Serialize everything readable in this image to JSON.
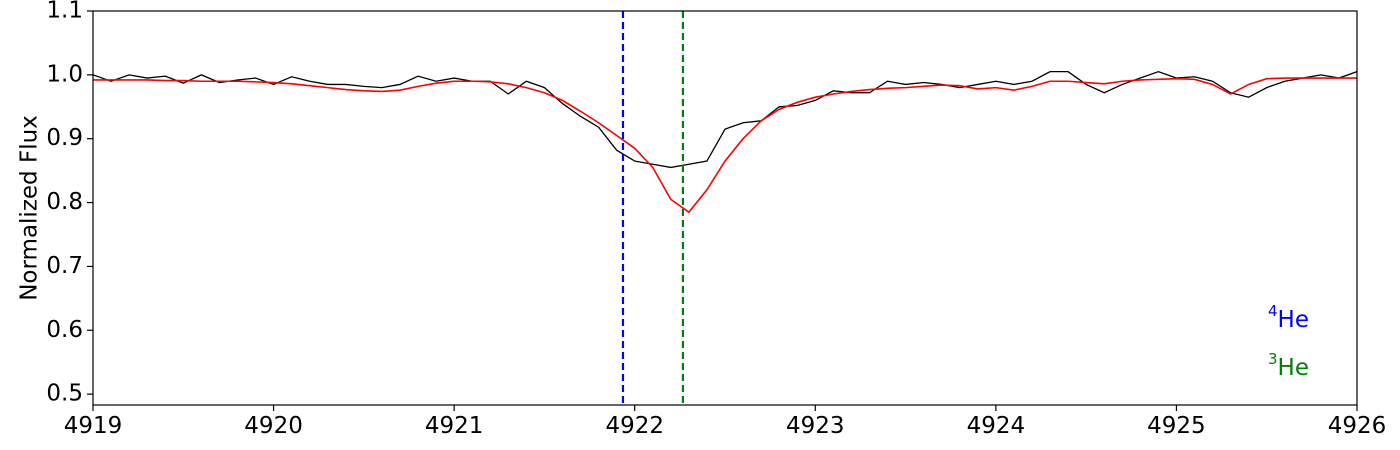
{
  "chart_data": {
    "type": "line",
    "ylabel": "Normalized Flux",
    "x": [
      4919.0,
      4919.1,
      4919.2,
      4919.3,
      4919.4,
      4919.5,
      4919.6,
      4919.7,
      4919.8,
      4919.9,
      4920.0,
      4920.1,
      4920.2,
      4920.3,
      4920.4,
      4920.5,
      4920.6,
      4920.7,
      4920.8,
      4920.9,
      4921.0,
      4921.1,
      4921.2,
      4921.3,
      4921.4,
      4921.5,
      4921.6,
      4921.7,
      4921.8,
      4921.9,
      4922.0,
      4922.1,
      4922.2,
      4922.3,
      4922.4,
      4922.5,
      4922.6,
      4922.7,
      4922.8,
      4922.9,
      4923.0,
      4923.1,
      4923.2,
      4923.3,
      4923.4,
      4923.5,
      4923.6,
      4923.7,
      4923.8,
      4923.9,
      4924.0,
      4924.1,
      4924.2,
      4924.3,
      4924.4,
      4924.5,
      4924.6,
      4924.7,
      4924.8,
      4924.9,
      4925.0,
      4925.1,
      4925.2,
      4925.3,
      4925.4,
      4925.5,
      4925.6,
      4925.7,
      4925.8,
      4925.9,
      4926.0
    ],
    "series": [
      {
        "color": "#000000",
        "values": [
          1.0,
          0.99,
          1.0,
          0.995,
          0.998,
          0.987,
          1.0,
          0.988,
          0.992,
          0.995,
          0.985,
          0.997,
          0.99,
          0.985,
          0.985,
          0.982,
          0.98,
          0.985,
          0.998,
          0.99,
          0.995,
          0.99,
          0.99,
          0.97,
          0.99,
          0.98,
          0.955,
          0.935,
          0.918,
          0.882,
          0.865,
          0.86,
          0.855,
          0.86,
          0.865,
          0.915,
          0.925,
          0.928,
          0.95,
          0.952,
          0.96,
          0.975,
          0.972,
          0.972,
          0.99,
          0.985,
          0.988,
          0.985,
          0.98,
          0.985,
          0.99,
          0.985,
          0.99,
          1.005,
          1.005,
          0.985,
          0.972,
          0.985,
          0.995,
          1.005,
          0.995,
          0.997,
          0.99,
          0.972,
          0.965,
          0.98,
          0.99,
          0.995,
          1.0,
          0.995,
          1.005
        ]
      },
      {
        "color": "#ff0000",
        "values": [
          0.992,
          0.992,
          0.992,
          0.992,
          0.991,
          0.991,
          0.99,
          0.99,
          0.99,
          0.989,
          0.988,
          0.986,
          0.983,
          0.98,
          0.977,
          0.975,
          0.974,
          0.976,
          0.982,
          0.987,
          0.99,
          0.99,
          0.989,
          0.986,
          0.98,
          0.972,
          0.96,
          0.943,
          0.925,
          0.905,
          0.885,
          0.855,
          0.805,
          0.785,
          0.82,
          0.865,
          0.9,
          0.928,
          0.946,
          0.957,
          0.965,
          0.97,
          0.974,
          0.977,
          0.979,
          0.98,
          0.982,
          0.984,
          0.983,
          0.978,
          0.98,
          0.976,
          0.982,
          0.99,
          0.99,
          0.988,
          0.986,
          0.99,
          0.992,
          0.993,
          0.994,
          0.993,
          0.985,
          0.97,
          0.985,
          0.994,
          0.995,
          0.995,
          0.995,
          0.995,
          0.995
        ]
      }
    ],
    "vlines": [
      {
        "x": 4921.935,
        "color": "#0000ff"
      },
      {
        "x": 4922.267,
        "color": "#008000"
      }
    ],
    "annotations": [
      {
        "superscript": "4",
        "text": "He",
        "color": "#0000ff"
      },
      {
        "superscript": "3",
        "text": "He",
        "color": "#008000"
      }
    ],
    "xlim": [
      4919,
      4926
    ],
    "ylim": [
      0.483,
      1.1
    ],
    "xticks": [
      4919,
      4920,
      4921,
      4922,
      4923,
      4924,
      4925,
      4926
    ],
    "yticks": [
      0.5,
      0.6,
      0.7,
      0.8,
      0.9,
      {
        "value": 1,
        "label": "1.0"
      },
      1.1
    ]
  }
}
